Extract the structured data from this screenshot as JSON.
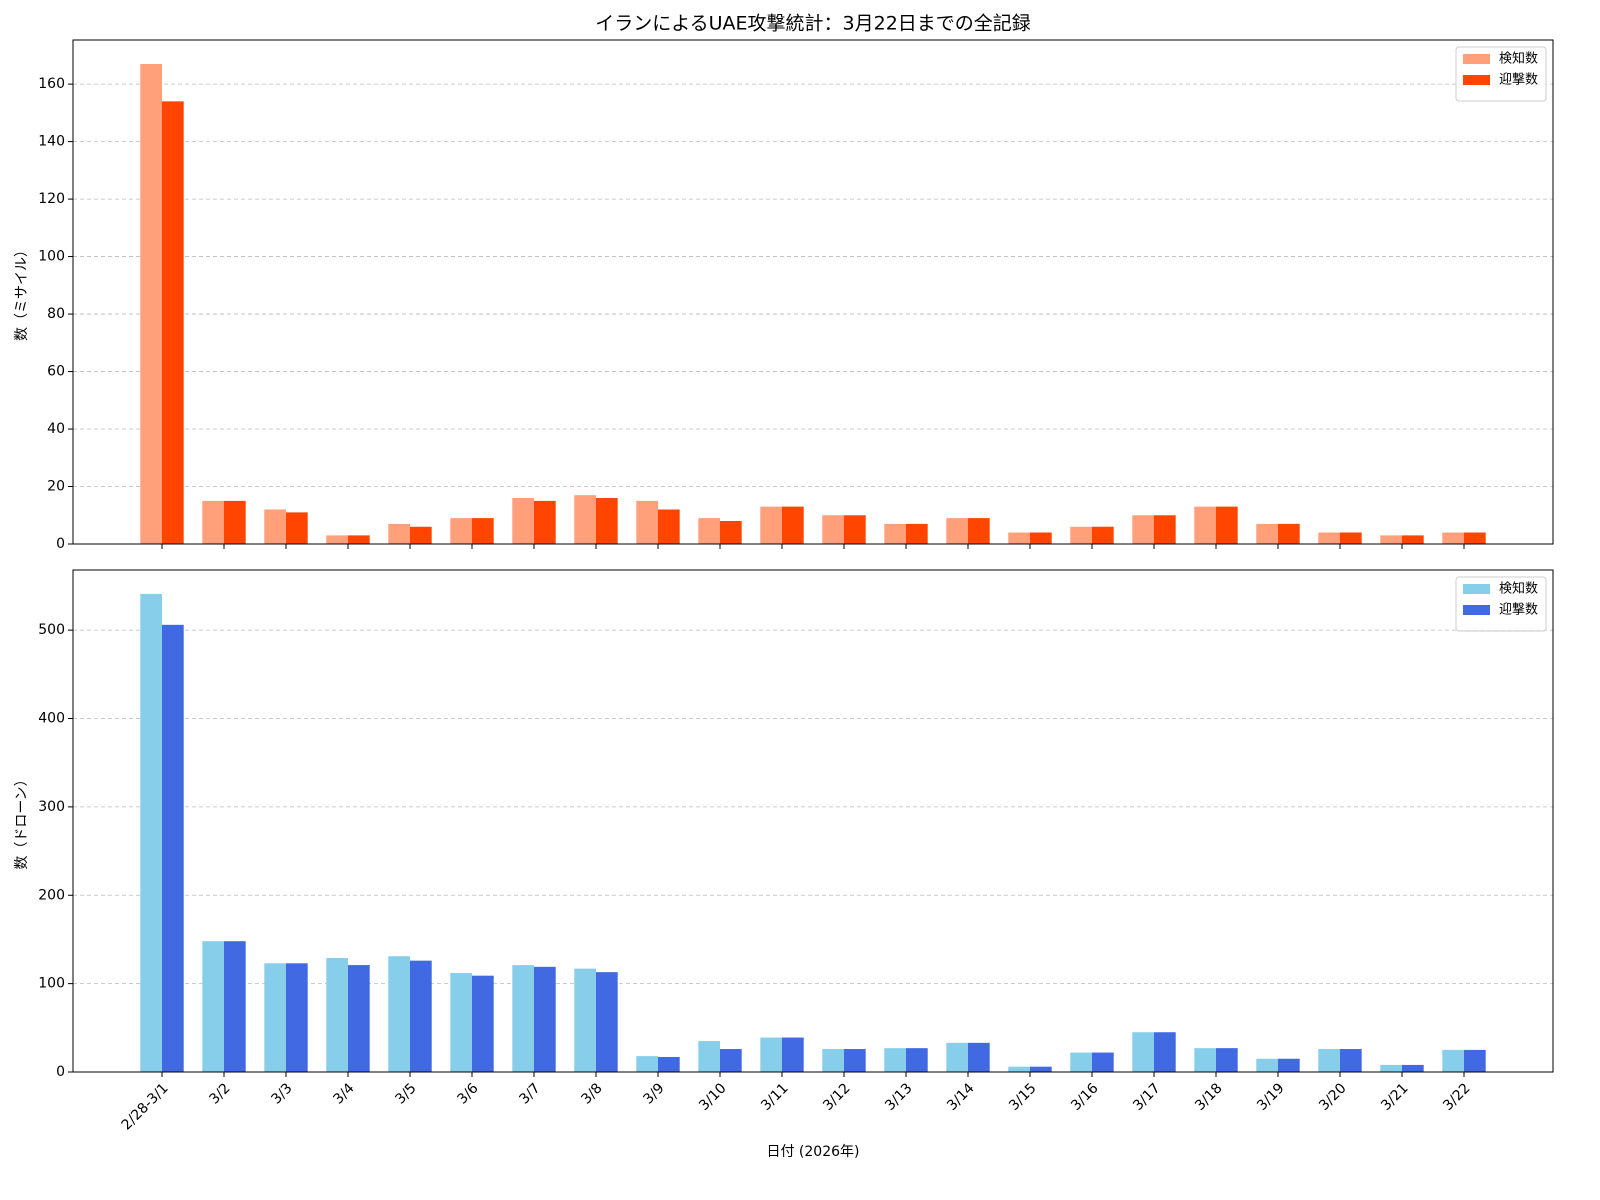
{
  "title": "イランによるUAE攻撃統計：3月22日までの全記録",
  "chart_data": [
    {
      "type": "bar",
      "ylabel": "数（ミサイル）",
      "series": [
        {
          "name": "検知数",
          "color": "#FFA07A",
          "values": [
            167,
            15,
            12,
            3,
            7,
            9,
            16,
            17,
            15,
            9,
            13,
            10,
            7,
            9,
            4,
            6,
            10,
            13,
            7,
            4,
            3,
            4
          ]
        },
        {
          "name": "迎撃数",
          "color": "#FF4500",
          "values": [
            154,
            15,
            11,
            3,
            6,
            9,
            15,
            16,
            12,
            8,
            13,
            10,
            7,
            9,
            4,
            6,
            10,
            13,
            7,
            4,
            3,
            4
          ]
        }
      ],
      "ylim": [
        0,
        175.35
      ],
      "yticks": [
        0,
        20,
        40,
        60,
        80,
        100,
        120,
        140,
        160
      ],
      "grid": true,
      "legend": "upper-right"
    },
    {
      "type": "bar",
      "ylabel": "数（ドローン）",
      "xlabel": "日付 (2026年)",
      "categories": [
        "2/28-3/1",
        "3/2",
        "3/3",
        "3/4",
        "3/5",
        "3/6",
        "3/7",
        "3/8",
        "3/9",
        "3/10",
        "3/11",
        "3/12",
        "3/13",
        "3/14",
        "3/15",
        "3/16",
        "3/17",
        "3/18",
        "3/19",
        "3/20",
        "3/21",
        "3/22"
      ],
      "series": [
        {
          "name": "検知数",
          "color": "#87CEEB",
          "values": [
            541,
            148,
            123,
            129,
            131,
            112,
            121,
            117,
            18,
            35,
            39,
            26,
            27,
            33,
            6,
            22,
            45,
            27,
            15,
            26,
            8,
            25
          ]
        },
        {
          "name": "迎撃数",
          "color": "#4169E1",
          "values": [
            506,
            148,
            123,
            121,
            126,
            109,
            119,
            113,
            17,
            26,
            39,
            26,
            27,
            33,
            6,
            22,
            45,
            27,
            15,
            26,
            8,
            25
          ]
        }
      ],
      "ylim": [
        0,
        568.05
      ],
      "yticks": [
        0,
        100,
        200,
        300,
        400,
        500
      ],
      "grid": true,
      "legend": "upper-right"
    }
  ]
}
